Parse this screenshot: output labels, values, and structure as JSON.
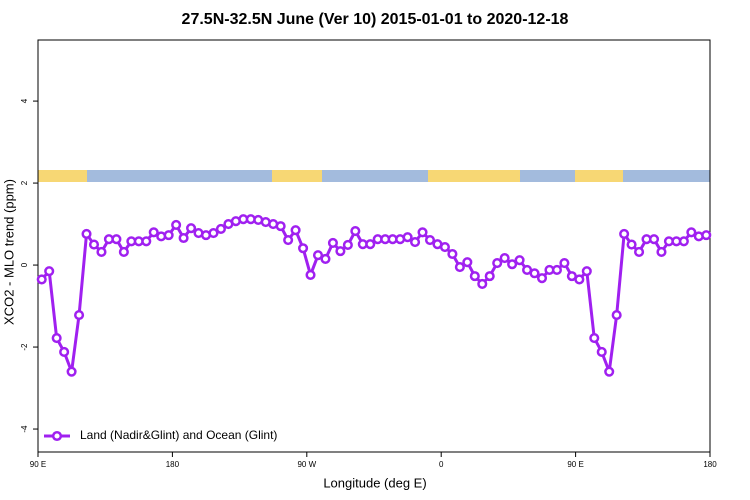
{
  "chart_data": {
    "type": "line",
    "title": "27.5N-32.5N June (Ver 10)   2015-01-01 to 2020-12-18",
    "x_label": "Longitude (deg E)",
    "y_label": "XCO2 - MLO trend (ppm)",
    "xlim": [
      90,
      540
    ],
    "xticks": [
      {
        "value": 90,
        "label": "90 E"
      },
      180,
      {
        "value": 270,
        "label": "90 W"
      },
      {
        "value": 360,
        "label": "0"
      },
      {
        "value": 450,
        "label": "90 E"
      },
      {
        "value": 540,
        "label": "180"
      }
    ],
    "ylim": [
      -4.56,
      5.49
    ],
    "yticks": [
      -4,
      -2,
      0,
      2,
      4
    ],
    "legend": "bottom-left",
    "x": [
      92.5,
      97.5,
      102.5,
      107.5,
      112.5,
      117.5,
      122.5,
      127.5,
      132.5,
      137.5,
      142.5,
      147.5,
      152.5,
      157.5,
      162.5,
      167.5,
      172.5,
      177.5,
      182.5,
      187.5,
      192.5,
      197.5,
      202.5,
      207.5,
      212.5,
      217.5,
      222.5,
      227.5,
      232.5,
      237.5,
      242.5,
      247.5,
      252.5,
      257.5,
      262.5,
      267.5,
      272.5,
      277.5,
      282.5,
      287.5,
      292.5,
      297.5,
      302.5,
      307.5,
      312.5,
      317.5,
      322.5,
      327.5,
      332.5,
      337.5,
      342.5,
      347.5,
      352.5,
      357.5,
      362.5,
      367.5,
      372.5,
      377.5,
      382.5,
      387.5,
      392.5,
      397.5,
      402.5,
      407.5,
      412.5,
      417.5,
      422.5,
      427.5,
      432.5,
      437.5,
      442.5,
      447.5,
      452.5,
      457.5,
      462.5,
      467.5,
      472.5,
      477.5,
      482.5,
      487.5,
      492.5,
      497.5,
      502.5,
      507.5,
      512.5,
      517.5,
      522.5,
      527.5,
      532.5,
      537.5
    ],
    "series": [
      {
        "name": "Land (Nadir&Glint) and Ocean (Glint)",
        "color": "#a020f0",
        "values": [
          -0.35,
          -0.15,
          -1.78,
          -2.12,
          -2.6,
          -1.22,
          0.76,
          0.5,
          0.32,
          0.63,
          0.63,
          0.32,
          0.58,
          0.58,
          0.58,
          0.8,
          0.7,
          0.73,
          0.98,
          0.66,
          0.9,
          0.78,
          0.73,
          0.78,
          0.88,
          1.0,
          1.07,
          1.12,
          1.12,
          1.1,
          1.05,
          1.0,
          0.95,
          0.61,
          0.85,
          0.41,
          -0.24,
          0.24,
          0.15,
          0.54,
          0.34,
          0.49,
          0.83,
          0.51,
          0.51,
          0.63,
          0.63,
          0.63,
          0.63,
          0.68,
          0.56,
          0.8,
          0.61,
          0.51,
          0.44,
          0.27,
          -0.05,
          0.07,
          -0.27,
          -0.46,
          -0.27,
          0.05,
          0.17,
          0.02,
          0.12,
          -0.12,
          -0.2,
          -0.32,
          -0.12,
          -0.12,
          0.05,
          -0.27,
          -0.35,
          -0.15,
          -1.78,
          -2.12,
          -2.6,
          -1.22,
          0.76,
          0.5,
          0.32,
          0.63,
          0.63,
          0.32,
          0.58,
          0.58,
          0.58,
          0.8,
          0.7,
          0.73
        ]
      }
    ]
  }
}
